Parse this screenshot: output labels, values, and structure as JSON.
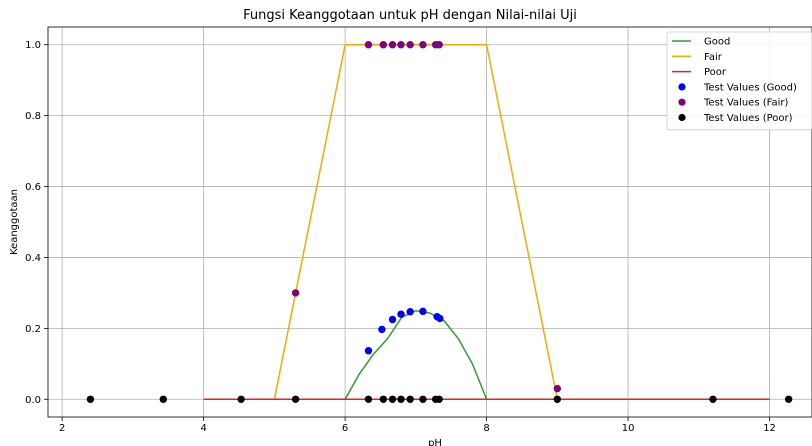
{
  "chart_data": {
    "type": "line",
    "title": "Fungsi Keanggotaan untuk pH dengan Nilai-nilai Uji",
    "xlabel": "pH",
    "ylabel": "Keanggotaan",
    "xlim": [
      1.8,
      12.6
    ],
    "ylim": [
      -0.05,
      1.05
    ],
    "xticks": [
      2,
      4,
      6,
      8,
      10,
      12
    ],
    "yticks": [
      0.0,
      0.2,
      0.4,
      0.6,
      0.8,
      1.0
    ],
    "xtick_labels": [
      "2",
      "4",
      "6",
      "8",
      "10",
      "12"
    ],
    "ytick_labels": [
      "0.0",
      "0.2",
      "0.4",
      "0.6",
      "0.8",
      "1.0"
    ],
    "grid": true,
    "legend_position": "top-right",
    "series": [
      {
        "name": "Good",
        "kind": "line",
        "color": "#2ca02c",
        "points": [
          [
            6.0,
            0.0
          ],
          [
            6.2,
            0.0711
          ],
          [
            6.4,
            0.1271
          ],
          [
            6.6,
            0.1711
          ],
          [
            6.8,
            0.2311
          ],
          [
            7.0,
            0.2497
          ],
          [
            7.2,
            0.2431
          ],
          [
            7.4,
            0.2211
          ],
          [
            7.6,
            0.1711
          ],
          [
            7.8,
            0.0998
          ],
          [
            8.0,
            0.0
          ]
        ]
      },
      {
        "name": "Fair",
        "kind": "line",
        "color": "#ffa500",
        "points": [
          [
            5.0,
            0.0
          ],
          [
            6.0,
            1.0
          ],
          [
            8.0,
            1.0
          ],
          [
            9.0,
            0.0
          ]
        ]
      },
      {
        "name": "Poor",
        "kind": "line",
        "color": "#e8231f",
        "points": [
          [
            4.0,
            0.0
          ],
          [
            12.0,
            0.0
          ]
        ]
      },
      {
        "name": "Test Values (Good)",
        "kind": "scatter",
        "color": "#0000ff",
        "points": [
          [
            6.33,
            0.137
          ],
          [
            6.52,
            0.197
          ],
          [
            6.67,
            0.225
          ],
          [
            6.79,
            0.24
          ],
          [
            6.92,
            0.247
          ],
          [
            7.1,
            0.248
          ],
          [
            7.3,
            0.233
          ],
          [
            7.34,
            0.228
          ]
        ]
      },
      {
        "name": "Test Values (Fair)",
        "kind": "scatter",
        "color": "#800080",
        "points": [
          [
            5.3,
            0.3
          ],
          [
            9.0,
            0.03
          ],
          [
            6.33,
            1.0
          ],
          [
            6.54,
            1.0
          ],
          [
            6.67,
            1.0
          ],
          [
            6.79,
            1.0
          ],
          [
            6.92,
            1.0
          ],
          [
            7.1,
            1.0
          ],
          [
            7.28,
            1.0
          ],
          [
            7.33,
            1.0
          ]
        ]
      },
      {
        "name": "Test Values (Poor)",
        "kind": "scatter",
        "color": "#000000",
        "points": [
          [
            2.4,
            0.0
          ],
          [
            3.43,
            0.0
          ],
          [
            4.53,
            0.0
          ],
          [
            5.3,
            0.0
          ],
          [
            6.33,
            0.0
          ],
          [
            6.54,
            0.0
          ],
          [
            6.67,
            0.0
          ],
          [
            6.79,
            0.0
          ],
          [
            6.92,
            0.0
          ],
          [
            7.1,
            0.0
          ],
          [
            7.28,
            0.0
          ],
          [
            7.33,
            0.0
          ],
          [
            9.0,
            0.0
          ],
          [
            11.2,
            0.0
          ],
          [
            12.27,
            0.0
          ]
        ]
      }
    ]
  }
}
